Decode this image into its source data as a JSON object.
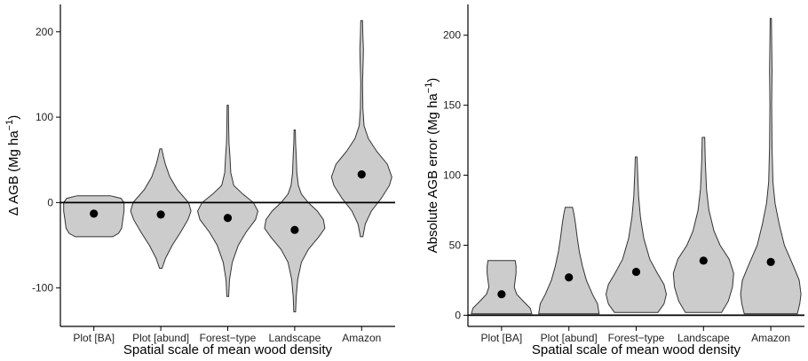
{
  "chart_data": [
    {
      "type": "violin",
      "xlabel": "Spatial scale of mean wood density",
      "ylabel": "Δ AGB (Mg ha",
      "ylabel_sup": "−1",
      "ylabel_close": ")",
      "ylim": [
        -145,
        232
      ],
      "yticks": [
        -100,
        0,
        100,
        200
      ],
      "yticklabels": [
        "-100",
        "0",
        "100",
        "200"
      ],
      "hline": 0,
      "categories": [
        "Plot [BA]",
        "Plot [abund]",
        "Forest−type",
        "Landscape",
        "Amazon"
      ],
      "series": [
        {
          "min": -40,
          "max": 8,
          "mean": -13,
          "density": [
            [
              -40,
              0.62
            ],
            [
              -36,
              0.82
            ],
            [
              -30,
              0.92
            ],
            [
              -20,
              0.96
            ],
            [
              -10,
              1.0
            ],
            [
              0,
              1.0
            ],
            [
              5,
              0.9
            ],
            [
              8,
              0.55
            ]
          ]
        },
        {
          "min": -77,
          "max": 63,
          "mean": -14,
          "density": [
            [
              -77,
              0.04
            ],
            [
              -65,
              0.16
            ],
            [
              -50,
              0.38
            ],
            [
              -35,
              0.65
            ],
            [
              -20,
              0.9
            ],
            [
              -10,
              1.0
            ],
            [
              0,
              0.92
            ],
            [
              15,
              0.55
            ],
            [
              30,
              0.3
            ],
            [
              45,
              0.15
            ],
            [
              55,
              0.08
            ],
            [
              63,
              0.03
            ]
          ]
        },
        {
          "min": -110,
          "max": 114,
          "mean": -18,
          "density": [
            [
              -110,
              0.03
            ],
            [
              -90,
              0.06
            ],
            [
              -70,
              0.15
            ],
            [
              -50,
              0.35
            ],
            [
              -35,
              0.6
            ],
            [
              -20,
              0.92
            ],
            [
              -10,
              1.0
            ],
            [
              0,
              0.85
            ],
            [
              10,
              0.5
            ],
            [
              20,
              0.2
            ],
            [
              35,
              0.1
            ],
            [
              55,
              0.07
            ],
            [
              70,
              0.04
            ],
            [
              90,
              0.03
            ],
            [
              114,
              0.02
            ]
          ]
        },
        {
          "min": -128,
          "max": 85,
          "mean": -32,
          "density": [
            [
              -128,
              0.03
            ],
            [
              -110,
              0.05
            ],
            [
              -90,
              0.1
            ],
            [
              -70,
              0.22
            ],
            [
              -55,
              0.45
            ],
            [
              -40,
              0.8
            ],
            [
              -30,
              1.0
            ],
            [
              -20,
              0.95
            ],
            [
              -10,
              0.75
            ],
            [
              0,
              0.45
            ],
            [
              10,
              0.22
            ],
            [
              20,
              0.12
            ],
            [
              35,
              0.07
            ],
            [
              55,
              0.05
            ],
            [
              70,
              0.03
            ],
            [
              85,
              0.02
            ]
          ]
        },
        {
          "min": -40,
          "max": 213,
          "mean": 33,
          "density": [
            [
              -40,
              0.04
            ],
            [
              -25,
              0.12
            ],
            [
              -10,
              0.32
            ],
            [
              5,
              0.65
            ],
            [
              20,
              0.92
            ],
            [
              30,
              1.0
            ],
            [
              45,
              0.85
            ],
            [
              60,
              0.5
            ],
            [
              75,
              0.22
            ],
            [
              90,
              0.08
            ],
            [
              110,
              0.04
            ],
            [
              140,
              0.03
            ],
            [
              165,
              0.05
            ],
            [
              180,
              0.06
            ],
            [
              195,
              0.04
            ],
            [
              213,
              0.03
            ]
          ]
        }
      ]
    },
    {
      "type": "violin",
      "xlabel": "Spatial scale of mean wood density",
      "ylabel": "Absolute AGB error (Mg ha",
      "ylabel_sup": "−1",
      "ylabel_close": ")",
      "ylim": [
        -8,
        222
      ],
      "yticks": [
        0,
        50,
        100,
        150,
        200
      ],
      "yticklabels": [
        "0",
        "50",
        "100",
        "150",
        "200"
      ],
      "hline": 0,
      "categories": [
        "Plot [BA]",
        "Plot [abund]",
        "Forest−type",
        "Landscape",
        "Amazon"
      ],
      "series": [
        {
          "min": 1,
          "max": 39,
          "mean": 15,
          "density": [
            [
              1,
              1.0
            ],
            [
              5,
              0.95
            ],
            [
              10,
              0.72
            ],
            [
              15,
              0.5
            ],
            [
              20,
              0.42
            ],
            [
              25,
              0.45
            ],
            [
              30,
              0.48
            ],
            [
              35,
              0.48
            ],
            [
              39,
              0.45
            ]
          ]
        },
        {
          "min": 1,
          "max": 77,
          "mean": 27,
          "density": [
            [
              1,
              1.0
            ],
            [
              8,
              0.95
            ],
            [
              15,
              0.78
            ],
            [
              25,
              0.58
            ],
            [
              35,
              0.45
            ],
            [
              45,
              0.35
            ],
            [
              55,
              0.28
            ],
            [
              65,
              0.22
            ],
            [
              72,
              0.17
            ],
            [
              77,
              0.12
            ]
          ]
        },
        {
          "min": 2,
          "max": 113,
          "mean": 31,
          "density": [
            [
              2,
              0.72
            ],
            [
              8,
              0.92
            ],
            [
              15,
              1.0
            ],
            [
              22,
              0.92
            ],
            [
              30,
              0.7
            ],
            [
              40,
              0.45
            ],
            [
              55,
              0.25
            ],
            [
              70,
              0.14
            ],
            [
              85,
              0.08
            ],
            [
              100,
              0.05
            ],
            [
              113,
              0.03
            ]
          ]
        },
        {
          "min": 2,
          "max": 127,
          "mean": 39,
          "density": [
            [
              2,
              0.6
            ],
            [
              10,
              0.82
            ],
            [
              20,
              0.96
            ],
            [
              30,
              1.0
            ],
            [
              40,
              0.85
            ],
            [
              50,
              0.55
            ],
            [
              60,
              0.35
            ],
            [
              75,
              0.18
            ],
            [
              90,
              0.1
            ],
            [
              110,
              0.06
            ],
            [
              127,
              0.04
            ]
          ]
        },
        {
          "min": 1,
          "max": 212,
          "mean": 38,
          "density": [
            [
              1,
              0.88
            ],
            [
              8,
              0.96
            ],
            [
              15,
              1.0
            ],
            [
              25,
              0.94
            ],
            [
              35,
              0.75
            ],
            [
              50,
              0.45
            ],
            [
              65,
              0.28
            ],
            [
              80,
              0.14
            ],
            [
              95,
              0.07
            ],
            [
              120,
              0.04
            ],
            [
              150,
              0.03
            ],
            [
              175,
              0.04
            ],
            [
              195,
              0.03
            ],
            [
              212,
              0.02
            ]
          ]
        }
      ]
    }
  ]
}
